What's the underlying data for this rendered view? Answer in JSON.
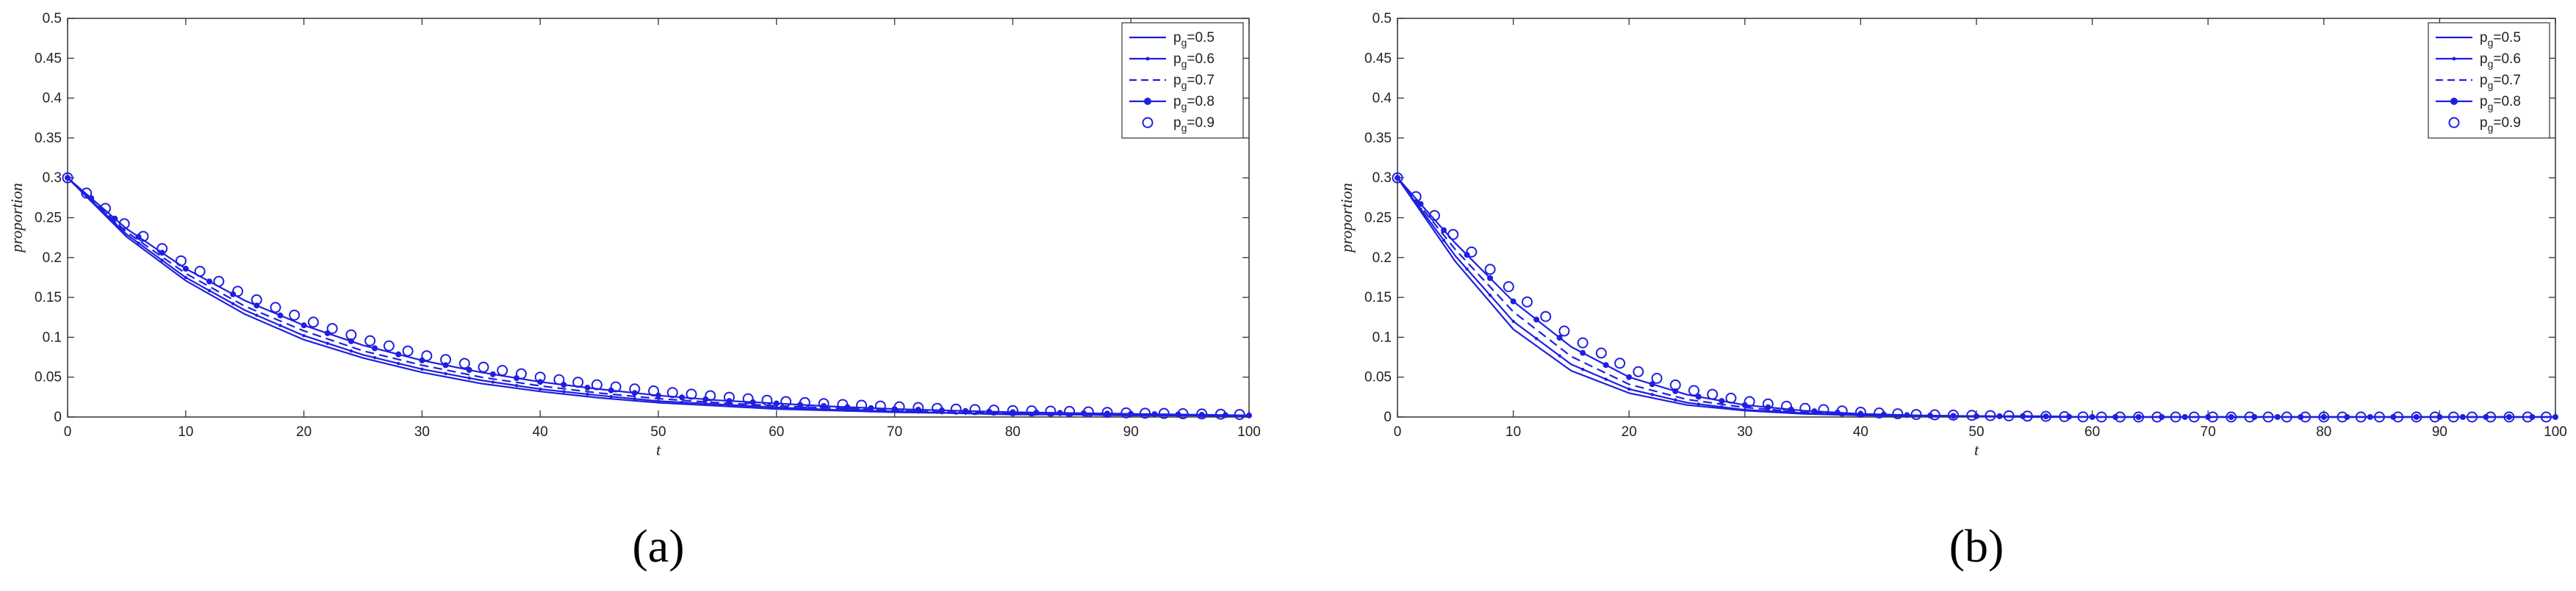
{
  "chart_data": [
    {
      "type": "line",
      "panel_label": "(a)",
      "xlabel": "t",
      "ylabel": "proportion",
      "xlim": [
        0,
        100
      ],
      "ylim": [
        0,
        0.5
      ],
      "xticks": [
        "0",
        "10",
        "20",
        "30",
        "40",
        "50",
        "60",
        "70",
        "80",
        "90",
        "100"
      ],
      "yticks": [
        "0",
        "0.05",
        "0.1",
        "0.15",
        "0.2",
        "0.25",
        "0.3",
        "0.35",
        "0.4",
        "0.45",
        "0.5"
      ],
      "grid": false,
      "legend_position": "top-right",
      "color": "#1f1fe0",
      "x": [
        0,
        5,
        10,
        15,
        20,
        25,
        30,
        35,
        40,
        45,
        50,
        55,
        60,
        65,
        70,
        75,
        80,
        85,
        90,
        95,
        100
      ],
      "series": [
        {
          "name": "p_g=0.5",
          "legend_base": "p",
          "legend_sub": "g",
          "legend_val": "=0.5",
          "style": "solid",
          "values": [
            0.3,
            0.226,
            0.171,
            0.129,
            0.097,
            0.074,
            0.056,
            0.042,
            0.032,
            0.024,
            0.018,
            0.014,
            0.01,
            0.008,
            0.006,
            0.005,
            0.003,
            0.003,
            0.002,
            0.002,
            0.001
          ]
        },
        {
          "name": "p_g=0.6",
          "legend_base": "p",
          "legend_sub": "g",
          "legend_val": "=0.6",
          "style": "point",
          "values": [
            0.3,
            0.229,
            0.175,
            0.134,
            0.102,
            0.078,
            0.06,
            0.046,
            0.035,
            0.027,
            0.02,
            0.016,
            0.012,
            0.009,
            0.007,
            0.005,
            0.004,
            0.003,
            0.002,
            0.002,
            0.001
          ]
        },
        {
          "name": "p_g=0.7",
          "legend_base": "p",
          "legend_sub": "g",
          "legend_val": "=0.7",
          "style": "dashed",
          "values": [
            0.3,
            0.232,
            0.18,
            0.139,
            0.108,
            0.083,
            0.065,
            0.05,
            0.039,
            0.03,
            0.023,
            0.018,
            0.014,
            0.011,
            0.008,
            0.006,
            0.005,
            0.004,
            0.003,
            0.002,
            0.002
          ]
        },
        {
          "name": "p_g=0.8",
          "legend_base": "p",
          "legend_sub": "g",
          "legend_val": "=0.8",
          "style": "star",
          "values": [
            0.3,
            0.236,
            0.186,
            0.146,
            0.115,
            0.09,
            0.071,
            0.056,
            0.044,
            0.035,
            0.027,
            0.021,
            0.017,
            0.013,
            0.01,
            0.008,
            0.006,
            0.005,
            0.004,
            0.003,
            0.002
          ]
        },
        {
          "name": "p_g=0.9",
          "legend_base": "p",
          "legend_sub": "g",
          "legend_val": "=0.9",
          "style": "circle",
          "values": [
            0.3,
            0.24,
            0.192,
            0.153,
            0.123,
            0.098,
            0.078,
            0.063,
            0.05,
            0.04,
            0.032,
            0.026,
            0.02,
            0.016,
            0.013,
            0.01,
            0.008,
            0.007,
            0.005,
            0.004,
            0.003
          ]
        }
      ]
    },
    {
      "type": "line",
      "panel_label": "(b)",
      "xlabel": "t",
      "ylabel": "proportion",
      "xlim": [
        0,
        100
      ],
      "ylim": [
        0,
        0.5
      ],
      "xticks": [
        "0",
        "10",
        "20",
        "30",
        "40",
        "50",
        "60",
        "70",
        "80",
        "90",
        "100"
      ],
      "yticks": [
        "0",
        "0.05",
        "0.1",
        "0.15",
        "0.2",
        "0.25",
        "0.3",
        "0.35",
        "0.4",
        "0.45",
        "0.5"
      ],
      "grid": false,
      "legend_position": "top-right",
      "color": "#1f1fe0",
      "x": [
        0,
        5,
        10,
        15,
        20,
        25,
        30,
        35,
        40,
        45,
        50,
        55,
        60,
        65,
        70,
        75,
        80,
        85,
        90,
        95,
        100
      ],
      "series": [
        {
          "name": "p_g=0.5",
          "legend_base": "p",
          "legend_sub": "g",
          "legend_val": "=0.5",
          "style": "solid",
          "values": [
            0.3,
            0.195,
            0.11,
            0.058,
            0.03,
            0.015,
            0.008,
            0.004,
            0.002,
            0.001,
            0.001,
            0.0,
            0.0,
            0.0,
            0.0,
            0.0,
            0.0,
            0.0,
            0.0,
            0.0,
            0.0
          ]
        },
        {
          "name": "p_g=0.6",
          "legend_base": "p",
          "legend_sub": "g",
          "legend_val": "=0.6",
          "style": "point",
          "values": [
            0.3,
            0.202,
            0.12,
            0.066,
            0.035,
            0.018,
            0.009,
            0.005,
            0.003,
            0.001,
            0.001,
            0.0,
            0.0,
            0.0,
            0.0,
            0.0,
            0.0,
            0.0,
            0.0,
            0.0,
            0.0
          ]
        },
        {
          "name": "p_g=0.7",
          "legend_base": "p",
          "legend_sub": "g",
          "legend_val": "=0.7",
          "style": "dashed",
          "values": [
            0.3,
            0.21,
            0.132,
            0.076,
            0.041,
            0.022,
            0.012,
            0.006,
            0.003,
            0.002,
            0.001,
            0.001,
            0.0,
            0.0,
            0.0,
            0.0,
            0.0,
            0.0,
            0.0,
            0.0,
            0.0
          ]
        },
        {
          "name": "p_g=0.8",
          "legend_base": "p",
          "legend_sub": "g",
          "legend_val": "=0.8",
          "style": "star",
          "values": [
            0.3,
            0.218,
            0.145,
            0.088,
            0.05,
            0.028,
            0.015,
            0.008,
            0.004,
            0.002,
            0.001,
            0.001,
            0.0,
            0.0,
            0.0,
            0.0,
            0.0,
            0.0,
            0.0,
            0.0,
            0.0
          ]
        },
        {
          "name": "p_g=0.9",
          "legend_base": "p",
          "legend_sub": "g",
          "legend_val": "=0.9",
          "style": "circle",
          "values": [
            0.3,
            0.226,
            0.158,
            0.101,
            0.061,
            0.035,
            0.02,
            0.011,
            0.006,
            0.003,
            0.002,
            0.001,
            0.0,
            0.0,
            0.0,
            0.0,
            0.0,
            0.0,
            0.0,
            0.0,
            0.0
          ]
        }
      ]
    }
  ]
}
